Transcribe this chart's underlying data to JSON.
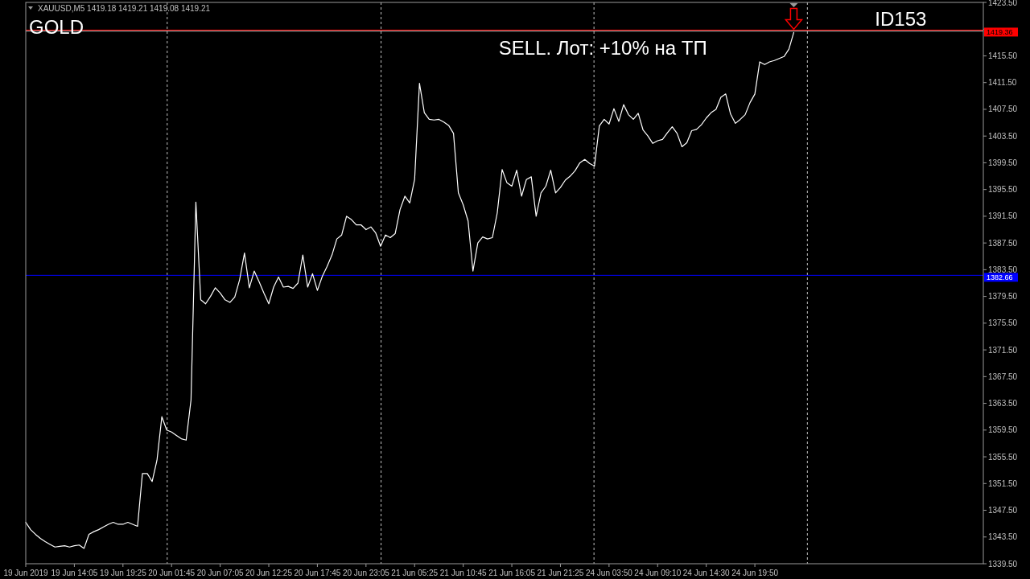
{
  "chart_data": {
    "type": "line",
    "title": "GOLD",
    "subtitle": "XAUUSD,M5  1419.18 1419.21 1419.08 1419.21",
    "annotations": [
      "ID153",
      "SELL. Лот: +10% на ТП"
    ],
    "categories": [
      "19 Jun 2019",
      null,
      null,
      null,
      null,
      null,
      null,
      null,
      null,
      null,
      "19 Jun 14:05",
      null,
      null,
      null,
      null,
      null,
      null,
      null,
      null,
      null,
      "19 Jun 19:25",
      null,
      null,
      null,
      null,
      null,
      null,
      null,
      null,
      null,
      "20 Jun 01:45",
      null,
      null,
      null,
      null,
      null,
      null,
      null,
      null,
      null,
      "20 Jun 07:05",
      null,
      null,
      null,
      null,
      null,
      null,
      null,
      null,
      null,
      "20 Jun 12:25",
      null,
      null,
      null,
      null,
      null,
      null,
      null,
      null,
      null,
      "20 Jun 17:45",
      null,
      null,
      null,
      null,
      null,
      null,
      null,
      null,
      null,
      "20 Jun 23:05",
      null,
      null,
      null,
      null,
      null,
      null,
      null,
      null,
      null,
      "21 Jun 05:25",
      null,
      null,
      null,
      null,
      null,
      null,
      null,
      null,
      null,
      "21 Jun 10:45",
      null,
      null,
      null,
      null,
      null,
      null,
      null,
      null,
      null,
      "21 Jun 16:05",
      null,
      null,
      null,
      null,
      null,
      null,
      null,
      null,
      null,
      "21 Jun 21:25",
      null,
      null,
      null,
      null,
      null,
      null,
      null,
      null,
      null,
      "24 Jun 03:50",
      null,
      null,
      null,
      null,
      null,
      null,
      null,
      null,
      null,
      "24 Jun 09:10",
      null,
      null,
      null,
      null,
      null,
      null,
      null,
      null,
      null,
      "24 Jun 14:30",
      null,
      null,
      null,
      null,
      null,
      null,
      null,
      null,
      null,
      "24 Jun 19:50",
      null,
      null,
      null,
      null,
      null,
      null,
      null,
      null,
      null,
      null,
      null,
      null,
      null,
      null,
      null,
      null,
      null,
      null,
      null,
      null,
      null,
      null,
      null,
      null,
      null,
      null,
      null,
      null,
      null,
      null,
      null,
      null,
      null,
      null,
      null,
      null,
      null,
      null,
      null,
      null,
      null,
      null,
      null,
      null,
      null,
      null,
      null
    ],
    "series": [
      {
        "color": "#ffffff",
        "values": [
          1345.7,
          1344.6,
          1343.9,
          1343.3,
          1342.8,
          1342.4,
          1342.0,
          1342.1,
          1342.2,
          1342.0,
          1342.2,
          1342.3,
          1341.8,
          1343.9,
          1344.3,
          1344.6,
          1345.0,
          1345.4,
          1345.7,
          1345.4,
          1345.4,
          1345.7,
          1345.4,
          1345.1,
          1353.0,
          1353.0,
          1351.8,
          1355.0,
          1361.5,
          1359.5,
          1359.2,
          1358.7,
          1358.2,
          1358.0,
          1364.0,
          1393.6,
          1379.0,
          1378.4,
          1379.5,
          1380.8,
          1380.0,
          1379.0,
          1378.6,
          1379.4,
          1382.0,
          1386.0,
          1380.8,
          1383.3,
          1381.7,
          1380.0,
          1378.4,
          1380.9,
          1382.4,
          1380.9,
          1381.0,
          1380.7,
          1381.5,
          1385.7,
          1380.9,
          1382.9,
          1380.4,
          1382.5,
          1384.0,
          1385.7,
          1388.1,
          1388.7,
          1391.5,
          1391.0,
          1390.2,
          1390.2,
          1389.5,
          1389.9,
          1389.0,
          1387.0,
          1388.7,
          1388.3,
          1388.9,
          1392.5,
          1394.5,
          1393.5,
          1397.0,
          1411.4,
          1407.0,
          1406.0,
          1405.9,
          1406.0,
          1405.6,
          1405.1,
          1403.9,
          1395.0,
          1393.2,
          1390.8,
          1383.3,
          1387.5,
          1388.4,
          1388.1,
          1388.3,
          1392.0,
          1398.5,
          1396.5,
          1396.0,
          1398.4,
          1394.5,
          1397.0,
          1397.4,
          1391.5,
          1395.0,
          1396.0,
          1398.4,
          1395.0,
          1395.8,
          1396.9,
          1397.5,
          1398.3,
          1399.5,
          1400.0,
          1399.4,
          1399.0,
          1405.0,
          1406.0,
          1405.3,
          1407.6,
          1405.7,
          1408.2,
          1406.7,
          1406.0,
          1406.9,
          1404.4,
          1403.5,
          1402.4,
          1402.8,
          1403.0,
          1404.0,
          1404.9,
          1403.9,
          1401.9,
          1402.5,
          1404.3,
          1404.5,
          1405.2,
          1406.2,
          1407.0,
          1407.5,
          1409.3,
          1409.8,
          1406.8,
          1405.4,
          1406.0,
          1406.7,
          1408.5,
          1409.8,
          1414.6,
          1414.2,
          1414.6,
          1414.8,
          1415.1,
          1415.4,
          1416.5,
          1419.0,
          null,
          null,
          null,
          null,
          null,
          null,
          null,
          null,
          null,
          null,
          null,
          null,
          null,
          null,
          null,
          null,
          null,
          null,
          null,
          null,
          null,
          null,
          null,
          null,
          null,
          null,
          null,
          null,
          null,
          null,
          null,
          null,
          null,
          null,
          null,
          null,
          null,
          null,
          null
        ]
      }
    ],
    "ylim": [
      1339.5,
      1423.5
    ],
    "yticks": [
      {
        "value": 1339.5,
        "label": "1339.50"
      },
      {
        "value": 1343.5,
        "label": "1343.50"
      },
      {
        "value": 1347.5,
        "label": "1347.50"
      },
      {
        "value": 1351.5,
        "label": "1351.50"
      },
      {
        "value": 1355.5,
        "label": "1355.50"
      },
      {
        "value": 1359.5,
        "label": "1359.50"
      },
      {
        "value": 1363.5,
        "label": "1363.50"
      },
      {
        "value": 1367.5,
        "label": "1367.50"
      },
      {
        "value": 1371.5,
        "label": "1371.50"
      },
      {
        "value": 1375.5,
        "label": "1375.50"
      },
      {
        "value": 1379.5,
        "label": "1379.50"
      },
      {
        "value": 1383.5,
        "label": "1383.50"
      },
      {
        "value": 1387.5,
        "label": "1387.50"
      },
      {
        "value": 1391.5,
        "label": "1391.50"
      },
      {
        "value": 1395.5,
        "label": "1395.50"
      },
      {
        "value": 1399.5,
        "label": "1399.50"
      },
      {
        "value": 1403.5,
        "label": "1403.50"
      },
      {
        "value": 1407.5,
        "label": "1407.50"
      },
      {
        "value": 1411.5,
        "label": "1411.50"
      },
      {
        "value": 1415.5,
        "label": "1415.50"
      },
      {
        "value": 1419.5,
        "label": null
      },
      {
        "value": 1423.5,
        "label": "1423.50"
      }
    ],
    "ref_lines": [
      {
        "axis": "y",
        "value": 1419.21,
        "color": "#c0c0c0",
        "line_style": "solid"
      },
      {
        "axis": "y",
        "value": 1419.36,
        "label": "1419.36",
        "color": "#ff0000",
        "line_style": "solid"
      },
      {
        "axis": "y",
        "value": 1382.66,
        "label": "1382.66",
        "color": "#0000ff",
        "line_style": "solid"
      }
    ],
    "grid": false,
    "marker": "none",
    "line_style": "solid"
  }
}
